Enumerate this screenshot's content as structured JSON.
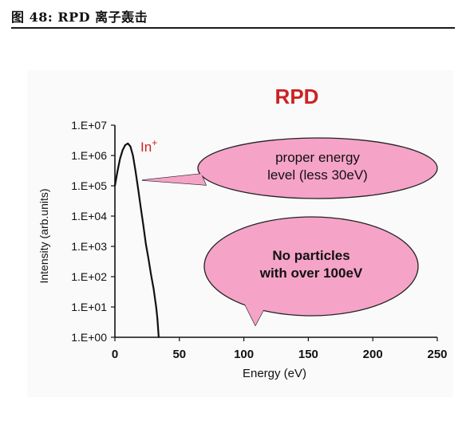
{
  "caption": "图 48: RPD 离子轰击",
  "chart_data": {
    "type": "line",
    "title": "RPD",
    "xlabel": "Energy (eV)",
    "ylabel": "Intensity (arb.units)",
    "xlim": [
      0,
      250
    ],
    "ylim_log10": [
      0,
      7
    ],
    "y_scale": "log",
    "xticks": [
      0,
      50,
      100,
      150,
      200,
      250
    ],
    "yticks": [
      "1.E+00",
      "1.E+01",
      "1.E+02",
      "1.E+03",
      "1.E+04",
      "1.E+05",
      "1.E+06",
      "1.E+07"
    ],
    "series": [
      {
        "name": "In+",
        "color": "#111111",
        "x": [
          0,
          2,
          4,
          6,
          8,
          10,
          12,
          14,
          16,
          18,
          20,
          22,
          24,
          26,
          28,
          30,
          32,
          33,
          34
        ],
        "y": [
          100000,
          300000,
          800000,
          1500000,
          2200000,
          2500000,
          2000000,
          1000000,
          300000,
          80000,
          20000,
          5000,
          1200,
          400,
          120,
          40,
          10,
          4,
          1
        ]
      }
    ],
    "annotations": [
      {
        "text": "proper energy level (less 30eV)",
        "lines": [
          "proper energy",
          "level (less 30eV)"
        ],
        "color": "#f5a3c7"
      },
      {
        "text": "No particles with over 100eV",
        "lines": [
          "No particles",
          "with over 100eV"
        ],
        "color": "#f5a3c7"
      }
    ],
    "title_color": "#cc2222",
    "series_label_color": "#cc2222",
    "series_label_base": "In",
    "series_label_sup": "+"
  }
}
